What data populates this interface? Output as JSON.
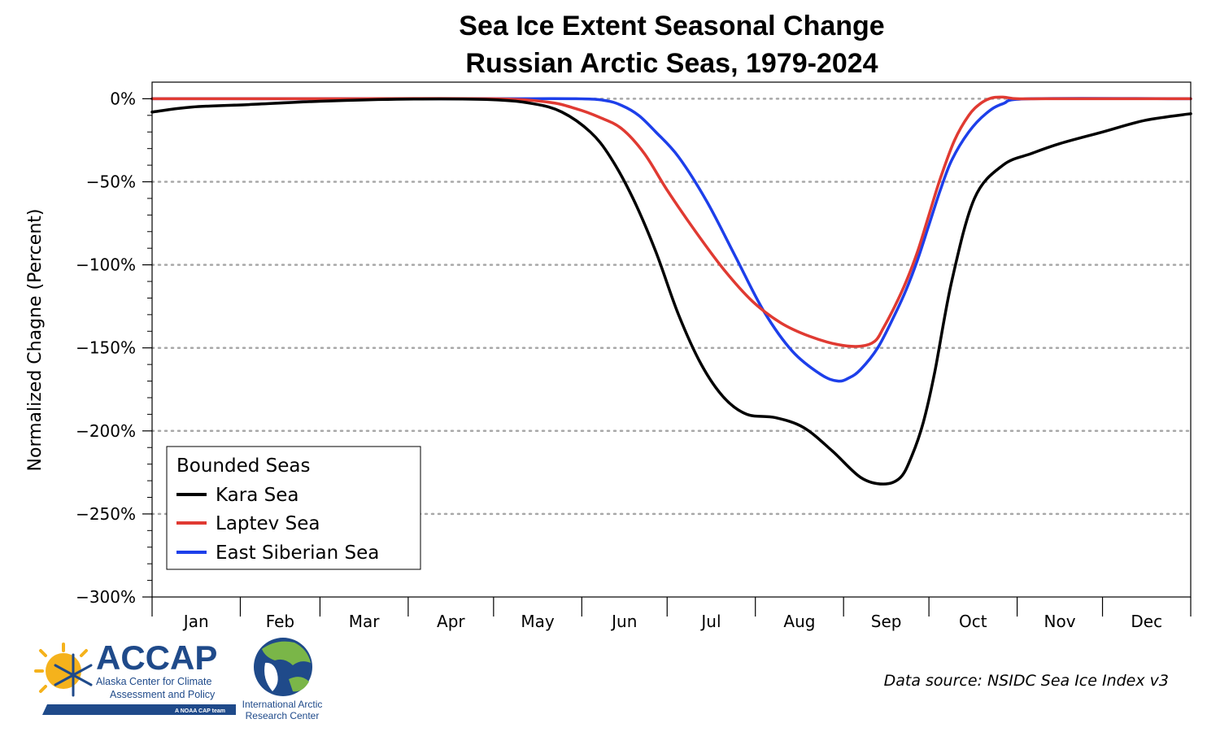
{
  "chart_data": {
    "type": "line",
    "title": "Sea Ice Extent Seasonal Change",
    "subtitle": "Russian Arctic Seas, 1979-2024",
    "ylabel": "Normalized Chagne (Percent)",
    "xlabel": "",
    "ylim": [
      -300,
      10
    ],
    "xlim": [
      1,
      366
    ],
    "y_ticks": [
      0,
      -50,
      -100,
      -150,
      -200,
      -250,
      -300
    ],
    "y_tick_labels": [
      "0%",
      "−50%",
      "−100%",
      "−150%",
      "−200%",
      "−250%",
      "−300%"
    ],
    "months": [
      "Jan",
      "Feb",
      "Mar",
      "Apr",
      "May",
      "Jun",
      "Jul",
      "Aug",
      "Sep",
      "Oct",
      "Nov",
      "Dec"
    ],
    "month_boundaries": [
      1,
      32,
      60,
      91,
      121,
      152,
      182,
      213,
      244,
      274,
      305,
      335,
      366
    ],
    "grid": "horizontal dotted at y ticks",
    "legend": {
      "title": "Bounded Seas",
      "placement": "bottom-left"
    },
    "series": [
      {
        "name": "Kara Sea",
        "color": "#000000",
        "x": [
          1,
          15,
          35,
          60,
          90,
          120,
          135,
          145,
          155,
          162,
          170,
          178,
          186,
          194,
          202,
          210,
          220,
          230,
          240,
          250,
          258,
          264,
          268,
          272,
          276,
          282,
          290,
          300,
          310,
          320,
          335,
          350,
          366
        ],
        "y": [
          -8,
          -5,
          -3.5,
          -1.5,
          -0.2,
          -0.5,
          -3,
          -8,
          -20,
          -35,
          -60,
          -92,
          -130,
          -160,
          -180,
          -190,
          -192,
          -198,
          -212,
          -228,
          -232,
          -228,
          -215,
          -195,
          -165,
          -110,
          -60,
          -40,
          -33,
          -27,
          -20,
          -13,
          -9
        ]
      },
      {
        "name": "Laptev Sea",
        "color": "#e03a32",
        "x": [
          1,
          60,
          120,
          140,
          150,
          158,
          166,
          174,
          182,
          192,
          202,
          212,
          222,
          232,
          242,
          250,
          255,
          258,
          262,
          266,
          270,
          274,
          278,
          283,
          288,
          292,
          296,
          300,
          305,
          315,
          366
        ],
        "y": [
          0,
          0,
          0,
          -2,
          -6,
          -11,
          -18,
          -33,
          -55,
          -80,
          -103,
          -122,
          -135,
          -143,
          -148,
          -149,
          -146,
          -138,
          -125,
          -110,
          -92,
          -70,
          -48,
          -25,
          -10,
          -3,
          0.5,
          1,
          0,
          0,
          0
        ]
      },
      {
        "name": "East Siberian Sea",
        "color": "#1d3fea",
        "x": [
          1,
          60,
          120,
          150,
          160,
          166,
          172,
          178,
          186,
          196,
          206,
          216,
          226,
          236,
          242,
          246,
          250,
          256,
          262,
          266,
          270,
          274,
          278,
          282,
          288,
          294,
          300,
          310,
          366
        ],
        "y": [
          0,
          0,
          0,
          0,
          -1,
          -4,
          -10,
          -20,
          -35,
          -62,
          -95,
          -128,
          -152,
          -166,
          -170,
          -168,
          -163,
          -150,
          -130,
          -115,
          -97,
          -76,
          -55,
          -37,
          -20,
          -9,
          -3,
          0,
          0
        ]
      }
    ],
    "source": "Data source: NSIDC Sea Ice Index v3"
  },
  "logos": {
    "accap": {
      "name": "ACCAP",
      "line1": "Alaska Center for Climate",
      "line2": "Assessment and Policy",
      "tag": "A NOAA CAP team"
    },
    "iarc": {
      "line1": "International Arctic",
      "line2": "Research Center"
    }
  }
}
